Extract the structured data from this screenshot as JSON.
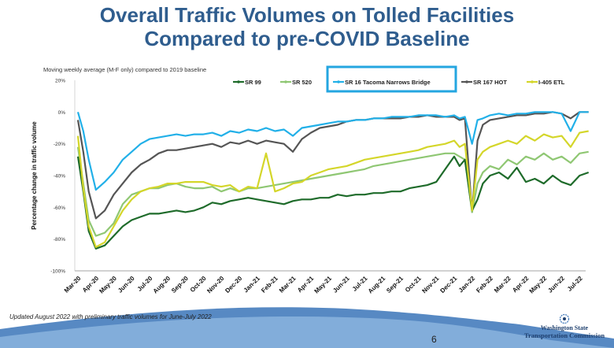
{
  "slide": {
    "title_line1": "Overall Traffic Volumes on Tolled Facilities",
    "title_line2": "Compared to pre-COVID Baseline",
    "subtitle": "Moving weekly average (M-F only) compared to 2019 baseline",
    "footnote": "Updated August 2022 with preliminary traffic volumes for June-July 2022",
    "page_number": "6",
    "logo_line1": "Washington State",
    "logo_line2": "Transportation Commission",
    "logo_icon": "compass-star-icon"
  },
  "chart_data": {
    "type": "line",
    "ylabel": "Percentage change in traffic volume",
    "xlabel": "",
    "ylim": [
      -100,
      20
    ],
    "yticks": [
      "20%",
      "0%",
      "-20%",
      "-40%",
      "-60%",
      "-80%",
      "-100%"
    ],
    "xticks": [
      "Mar-20",
      "Apr-20",
      "May-20",
      "Jun-20",
      "Jul-20",
      "Aug-20",
      "Sep-20",
      "Oct-20",
      "Nov-20",
      "Dec-20",
      "Jan-21",
      "Feb-21",
      "Mar-21",
      "Apr-21",
      "May-21",
      "Jun-21",
      "Jul-21",
      "Aug-21",
      "Sep-21",
      "Oct-21",
      "Nov-21",
      "Dec-21",
      "Jan-22",
      "Feb-22",
      "Mar-22",
      "Apr-22",
      "May-22",
      "Jun-22",
      "Jul-22"
    ],
    "grid": false,
    "legend_position": "top",
    "highlighted_series": "SR 16 Tacoma Narrows Bridge",
    "series": [
      {
        "name": "SR 99",
        "color": "#1e6b2a",
        "x": [
          0,
          0.3,
          0.6,
          1,
          1.5,
          2,
          2.5,
          3,
          3.5,
          4,
          4.5,
          5,
          5.5,
          6,
          6.5,
          7,
          7.5,
          8,
          8.5,
          9,
          9.5,
          10,
          10.5,
          11,
          11.5,
          12,
          12.5,
          13,
          13.5,
          14,
          14.5,
          15,
          15.5,
          16,
          16.5,
          17,
          17.5,
          18,
          18.5,
          19,
          19.5,
          20,
          20.5,
          21,
          21.3,
          21.6,
          22,
          22.3,
          22.6,
          23,
          23.5,
          24,
          24.5,
          25,
          25.5,
          26,
          26.5,
          27,
          27.5,
          28,
          28.5
        ],
        "y": [
          -28,
          -50,
          -75,
          -86,
          -84,
          -78,
          -72,
          -68,
          -66,
          -64,
          -64,
          -63,
          -62,
          -63,
          -62,
          -60,
          -57,
          -58,
          -56,
          -55,
          -54,
          -55,
          -56,
          -57,
          -58,
          -56,
          -55,
          -55,
          -54,
          -54,
          -52,
          -53,
          -52,
          -52,
          -51,
          -51,
          -50,
          -50,
          -48,
          -47,
          -46,
          -44,
          -36,
          -28,
          -34,
          -30,
          -62,
          -55,
          -45,
          -40,
          -38,
          -42,
          -35,
          -44,
          -42,
          -45,
          -40,
          -44,
          -46,
          -40,
          -38
        ]
      },
      {
        "name": "SR 520",
        "color": "#8fc773",
        "x": [
          0,
          0.3,
          0.6,
          1,
          1.5,
          2,
          2.5,
          3,
          3.5,
          4,
          4.5,
          5,
          5.5,
          6,
          6.5,
          7,
          7.5,
          8,
          8.5,
          9,
          9.5,
          10,
          10.5,
          11,
          11.5,
          12,
          12.5,
          13,
          13.5,
          14,
          14.5,
          15,
          15.5,
          16,
          16.5,
          17,
          17.5,
          18,
          18.5,
          19,
          19.5,
          20,
          20.5,
          21,
          21.3,
          21.6,
          22,
          22.3,
          22.6,
          23,
          23.5,
          24,
          24.5,
          25,
          25.5,
          26,
          26.5,
          27,
          27.5,
          28,
          28.5
        ],
        "y": [
          -22,
          -45,
          -68,
          -78,
          -76,
          -70,
          -58,
          -52,
          -50,
          -48,
          -48,
          -46,
          -45,
          -47,
          -48,
          -48,
          -47,
          -50,
          -48,
          -50,
          -48,
          -48,
          -47,
          -46,
          -45,
          -44,
          -43,
          -42,
          -41,
          -40,
          -39,
          -38,
          -37,
          -36,
          -34,
          -33,
          -32,
          -31,
          -30,
          -29,
          -28,
          -27,
          -26,
          -26,
          -28,
          -30,
          -63,
          -45,
          -38,
          -34,
          -36,
          -30,
          -33,
          -28,
          -30,
          -26,
          -30,
          -28,
          -32,
          -26,
          -25
        ]
      },
      {
        "name": "SR 16 Tacoma Narrows Bridge",
        "color": "#22b0e8",
        "x": [
          0,
          0.3,
          0.6,
          1,
          1.5,
          2,
          2.5,
          3,
          3.5,
          4,
          4.5,
          5,
          5.5,
          6,
          6.5,
          7,
          7.5,
          8,
          8.5,
          9,
          9.5,
          10,
          10.5,
          11,
          11.5,
          12,
          12.5,
          13,
          13.5,
          14,
          14.5,
          15,
          15.5,
          16,
          16.5,
          17,
          17.5,
          18,
          18.5,
          19,
          19.5,
          20,
          20.5,
          21,
          21.3,
          21.6,
          22,
          22.3,
          22.6,
          23,
          23.5,
          24,
          24.5,
          25,
          25.5,
          26,
          26.5,
          27,
          27.5,
          28,
          28.5
        ],
        "y": [
          0,
          -12,
          -30,
          -49,
          -44,
          -38,
          -30,
          -25,
          -20,
          -17,
          -16,
          -15,
          -14,
          -15,
          -14,
          -14,
          -13,
          -15,
          -12,
          -13,
          -11,
          -12,
          -10,
          -12,
          -11,
          -15,
          -10,
          -9,
          -8,
          -7,
          -6,
          -6,
          -5,
          -5,
          -4,
          -4,
          -3,
          -3,
          -3,
          -2,
          -2,
          -2,
          -3,
          -2,
          -4,
          -3,
          -20,
          -5,
          -4,
          -2,
          -1,
          -2,
          -1,
          -1,
          0,
          0,
          0,
          -1,
          -12,
          0,
          0
        ]
      },
      {
        "name": "SR 167 HOT",
        "color": "#555555",
        "x": [
          0,
          0.3,
          0.6,
          1,
          1.5,
          2,
          2.5,
          3,
          3.5,
          4,
          4.5,
          5,
          5.5,
          6,
          6.5,
          7,
          7.5,
          8,
          8.5,
          9,
          9.5,
          10,
          10.5,
          11,
          11.5,
          12,
          12.5,
          13,
          13.5,
          14,
          14.5,
          15,
          15.5,
          16,
          16.5,
          17,
          17.5,
          18,
          18.5,
          19,
          19.5,
          20,
          20.5,
          21,
          21.3,
          21.6,
          22,
          22.3,
          22.6,
          23,
          23.5,
          24,
          24.5,
          25,
          25.5,
          26,
          26.5,
          27,
          27.5,
          28,
          28.5
        ],
        "y": [
          -5,
          -25,
          -50,
          -67,
          -62,
          -52,
          -45,
          -38,
          -33,
          -30,
          -26,
          -24,
          -24,
          -23,
          -22,
          -21,
          -20,
          -22,
          -19,
          -20,
          -18,
          -20,
          -18,
          -19,
          -20,
          -25,
          -17,
          -13,
          -10,
          -9,
          -8,
          -6,
          -5,
          -5,
          -4,
          -4,
          -4,
          -4,
          -3,
          -3,
          -2,
          -3,
          -3,
          -3,
          -5,
          -4,
          -63,
          -18,
          -8,
          -5,
          -4,
          -3,
          -2,
          -2,
          -1,
          -1,
          0,
          -1,
          -4,
          0,
          0
        ]
      },
      {
        "name": "I-405 ETL",
        "color": "#d4d62a",
        "x": [
          0,
          0.3,
          0.6,
          1,
          1.5,
          2,
          2.5,
          3,
          3.5,
          4,
          4.5,
          5,
          5.5,
          6,
          6.5,
          7,
          7.5,
          8,
          8.5,
          9,
          9.5,
          10,
          10.5,
          11,
          11.5,
          12,
          12.5,
          13,
          13.5,
          14,
          14.5,
          15,
          15.5,
          16,
          16.5,
          17,
          17.5,
          18,
          18.5,
          19,
          19.5,
          20,
          20.5,
          21,
          21.3,
          21.6,
          22,
          22.3,
          22.6,
          23,
          23.5,
          24,
          24.5,
          25,
          25.5,
          26,
          26.5,
          27,
          27.5,
          28,
          28.5
        ],
        "y": [
          -15,
          -48,
          -72,
          -85,
          -82,
          -72,
          -62,
          -55,
          -50,
          -48,
          -47,
          -45,
          -45,
          -44,
          -44,
          -44,
          -46,
          -47,
          -46,
          -50,
          -47,
          -48,
          -26,
          -50,
          -48,
          -45,
          -44,
          -40,
          -38,
          -36,
          -35,
          -34,
          -32,
          -30,
          -29,
          -28,
          -27,
          -26,
          -25,
          -24,
          -22,
          -21,
          -20,
          -18,
          -22,
          -20,
          -62,
          -30,
          -25,
          -22,
          -20,
          -18,
          -20,
          -15,
          -18,
          -14,
          -16,
          -15,
          -22,
          -13,
          -12
        ]
      }
    ]
  }
}
